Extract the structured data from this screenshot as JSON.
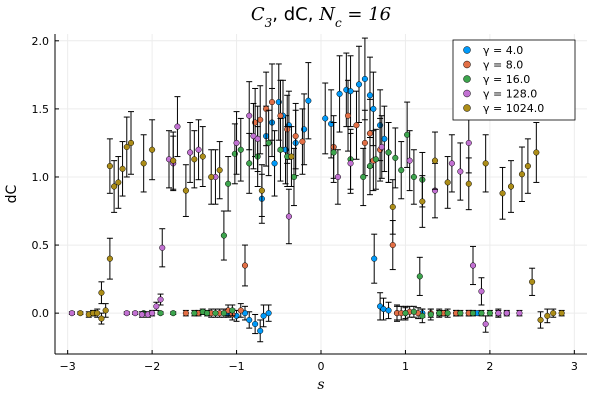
{
  "chart_data": {
    "type": "scatter",
    "title_parts": [
      {
        "text": "C",
        "italic": true
      },
      {
        "text": "3",
        "sub": true,
        "italic": true
      },
      {
        "text": ", dC, ",
        "italic": false
      },
      {
        "text": "N",
        "italic": true
      },
      {
        "text": "c",
        "sub": true,
        "italic": true
      },
      {
        "text": " = 16",
        "italic": true
      }
    ],
    "xlabel": "s",
    "ylabel": "dC",
    "xlim": [
      -3.15,
      3.15
    ],
    "ylim": [
      -0.3,
      2.05
    ],
    "xticks": [
      -3,
      -2,
      -1,
      0,
      1,
      2,
      3
    ],
    "xtick_labels": [
      "−3",
      "−2",
      "−1",
      "0",
      "1",
      "2",
      "3"
    ],
    "yticks": [
      0.0,
      0.5,
      1.0,
      1.5,
      2.0
    ],
    "ytick_labels": [
      "0.0",
      "0.5",
      "1.0",
      "1.5",
      "2.0"
    ],
    "grid": true,
    "legend_position": "top-right",
    "error_bars": true,
    "series": [
      {
        "name": "γ = 4.0",
        "color": "#009AFA",
        "points": [
          [
            -1.1,
            0.0,
            0.03
          ],
          [
            -1.0,
            -0.02,
            0.04
          ],
          [
            -0.9,
            0.0,
            0.05
          ],
          [
            -0.85,
            -0.05,
            0.06
          ],
          [
            -0.78,
            -0.08,
            0.07
          ],
          [
            -0.72,
            -0.13,
            0.08
          ],
          [
            -0.68,
            -0.02,
            0.08
          ],
          [
            -0.62,
            0.0,
            0.06
          ],
          [
            -0.7,
            0.84,
            0.18
          ],
          [
            -0.65,
            1.3,
            0.22
          ],
          [
            -0.58,
            1.4,
            0.25
          ],
          [
            -0.55,
            1.1,
            0.24
          ],
          [
            -0.5,
            1.55,
            0.28
          ],
          [
            -0.45,
            1.45,
            0.26
          ],
          [
            -0.42,
            1.2,
            0.25
          ],
          [
            -0.38,
            1.38,
            0.25
          ],
          [
            -0.3,
            1.25,
            0.24
          ],
          [
            -0.2,
            1.35,
            0.26
          ],
          [
            -0.15,
            1.56,
            0.28
          ],
          [
            0.05,
            1.43,
            0.26
          ],
          [
            0.12,
            1.39,
            0.25
          ],
          [
            0.22,
            1.61,
            0.28
          ],
          [
            0.3,
            1.64,
            0.27
          ],
          [
            0.35,
            1.63,
            0.26
          ],
          [
            0.45,
            1.68,
            0.28
          ],
          [
            0.52,
            1.72,
            0.3
          ],
          [
            0.58,
            1.6,
            0.28
          ],
          [
            0.62,
            1.5,
            0.27
          ],
          [
            0.7,
            1.38,
            0.26
          ],
          [
            0.75,
            1.28,
            0.24
          ],
          [
            0.8,
            1.18,
            0.22
          ],
          [
            0.63,
            0.4,
            0.18
          ],
          [
            0.7,
            0.05,
            0.1
          ],
          [
            0.74,
            0.03,
            0.08
          ],
          [
            0.8,
            0.02,
            0.06
          ],
          [
            0.9,
            0.0,
            0.05
          ],
          [
            1.0,
            0.0,
            0.04
          ],
          [
            1.2,
            0.0,
            0.03
          ],
          [
            1.4,
            0.0,
            0.02
          ],
          [
            1.6,
            0.0,
            0.02
          ],
          [
            1.75,
            0.0,
            0.02
          ],
          [
            1.85,
            0.0,
            0.01
          ]
        ]
      },
      {
        "name": "γ = 8.0",
        "color": "#E26F46",
        "points": [
          [
            -1.6,
            0.0,
            0.02
          ],
          [
            -1.45,
            0.0,
            0.02
          ],
          [
            -1.3,
            0.0,
            0.03
          ],
          [
            -1.2,
            0.0,
            0.03
          ],
          [
            -1.1,
            0.02,
            0.04
          ],
          [
            -1.05,
            -0.01,
            0.04
          ],
          [
            -0.95,
            0.02,
            0.05
          ],
          [
            -0.9,
            0.35,
            0.15
          ],
          [
            -0.78,
            1.4,
            0.25
          ],
          [
            -0.72,
            1.42,
            0.25
          ],
          [
            -0.65,
            1.5,
            0.27
          ],
          [
            -0.58,
            1.55,
            0.28
          ],
          [
            -0.48,
            1.45,
            0.26
          ],
          [
            -0.4,
            1.35,
            0.25
          ],
          [
            -0.3,
            1.3,
            0.24
          ],
          [
            -0.22,
            1.26,
            0.24
          ],
          [
            0.15,
            1.22,
            0.23
          ],
          [
            0.32,
            1.45,
            0.26
          ],
          [
            0.42,
            1.38,
            0.25
          ],
          [
            0.52,
            1.25,
            0.24
          ],
          [
            0.58,
            1.32,
            0.25
          ],
          [
            0.62,
            1.12,
            0.22
          ],
          [
            0.7,
            1.2,
            0.23
          ],
          [
            0.85,
            0.5,
            0.18
          ],
          [
            0.9,
            0.0,
            0.06
          ],
          [
            0.95,
            0.0,
            0.05
          ],
          [
            1.05,
            0.01,
            0.04
          ],
          [
            1.15,
            0.0,
            0.04
          ],
          [
            1.3,
            0.0,
            0.03
          ],
          [
            1.45,
            0.0,
            0.02
          ],
          [
            1.6,
            0.0,
            0.02
          ],
          [
            1.75,
            0.0,
            0.02
          ]
        ]
      },
      {
        "name": "γ = 16.0",
        "color": "#3DA44D",
        "points": [
          [
            -2.1,
            0.0,
            0.01
          ],
          [
            -1.9,
            0.0,
            0.01
          ],
          [
            -1.75,
            0.0,
            0.01
          ],
          [
            -1.5,
            0.0,
            0.02
          ],
          [
            -1.4,
            0.01,
            0.02
          ],
          [
            -1.35,
            0.0,
            0.02
          ],
          [
            -1.25,
            0.0,
            0.03
          ],
          [
            -1.15,
            0.0,
            0.03
          ],
          [
            -1.05,
            0.02,
            0.04
          ],
          [
            -1.15,
            0.57,
            0.18
          ],
          [
            -1.1,
            0.95,
            0.2
          ],
          [
            -1.02,
            1.17,
            0.22
          ],
          [
            -0.95,
            1.2,
            0.23
          ],
          [
            -0.85,
            1.1,
            0.22
          ],
          [
            -0.75,
            1.15,
            0.22
          ],
          [
            -0.62,
            1.25,
            0.24
          ],
          [
            -0.48,
            1.2,
            0.23
          ],
          [
            -0.4,
            1.15,
            0.22
          ],
          [
            -0.32,
            1.0,
            0.21
          ],
          [
            0.15,
            1.18,
            0.22
          ],
          [
            0.35,
            1.13,
            0.22
          ],
          [
            0.5,
            1.0,
            0.21
          ],
          [
            0.58,
            1.08,
            0.21
          ],
          [
            0.65,
            1.13,
            0.22
          ],
          [
            0.8,
            1.18,
            0.22
          ],
          [
            0.88,
            1.14,
            0.22
          ],
          [
            0.95,
            1.05,
            0.21
          ],
          [
            1.02,
            1.31,
            0.24
          ],
          [
            1.1,
            1.0,
            0.2
          ],
          [
            1.2,
            0.98,
            0.2
          ],
          [
            1.17,
            0.27,
            0.14
          ],
          [
            1.0,
            0.0,
            0.05
          ],
          [
            1.1,
            0.01,
            0.04
          ],
          [
            1.2,
            -0.02,
            0.05
          ],
          [
            1.3,
            -0.01,
            0.04
          ],
          [
            1.4,
            0.0,
            0.03
          ],
          [
            1.5,
            0.0,
            0.03
          ],
          [
            1.65,
            0.0,
            0.02
          ],
          [
            1.8,
            0.0,
            0.02
          ],
          [
            1.9,
            0.0,
            0.02
          ],
          [
            2.0,
            0.0,
            0.02
          ],
          [
            2.1,
            0.0,
            0.02
          ],
          [
            2.2,
            0.0,
            0.01
          ]
        ]
      },
      {
        "name": "γ = 128.0",
        "color": "#C271D2",
        "points": [
          [
            -2.95,
            0.0,
            0.01
          ],
          [
            -2.3,
            0.0,
            0.01
          ],
          [
            -2.2,
            0.0,
            0.01
          ],
          [
            -2.12,
            -0.01,
            0.02
          ],
          [
            -2.05,
            -0.01,
            0.02
          ],
          [
            -2.0,
            0.0,
            0.02
          ],
          [
            -1.95,
            0.05,
            0.03
          ],
          [
            -1.9,
            0.1,
            0.04
          ],
          [
            -1.88,
            0.48,
            0.14
          ],
          [
            -1.75,
            1.1,
            0.2
          ],
          [
            -1.8,
            1.13,
            0.21
          ],
          [
            -1.7,
            1.37,
            0.22
          ],
          [
            -1.55,
            1.18,
            0.22
          ],
          [
            -1.45,
            1.2,
            0.22
          ],
          [
            -1.25,
            1.0,
            0.2
          ],
          [
            -1.0,
            1.25,
            0.23
          ],
          [
            -0.85,
            1.45,
            0.25
          ],
          [
            -0.8,
            1.3,
            0.24
          ],
          [
            -0.75,
            1.28,
            0.24
          ],
          [
            -0.38,
            0.71,
            0.2
          ],
          [
            0.2,
            1.0,
            0.2
          ],
          [
            0.35,
            1.1,
            0.22
          ],
          [
            0.72,
            1.22,
            0.23
          ],
          [
            1.05,
            1.12,
            0.22
          ],
          [
            1.35,
            0.9,
            0.2
          ],
          [
            1.55,
            1.1,
            0.21
          ],
          [
            1.65,
            1.04,
            0.21
          ],
          [
            1.75,
            1.25,
            0.22
          ],
          [
            1.8,
            0.35,
            0.14
          ],
          [
            1.9,
            0.16,
            0.1
          ],
          [
            1.95,
            -0.08,
            0.06
          ],
          [
            2.1,
            0.0,
            0.03
          ],
          [
            2.2,
            0.0,
            0.02
          ],
          [
            2.35,
            0.0,
            0.02
          ]
        ]
      },
      {
        "name": "γ = 1024.0",
        "color": "#AC8D18",
        "points": [
          [
            -2.85,
            0.0,
            0.01
          ],
          [
            -2.75,
            -0.01,
            0.02
          ],
          [
            -2.7,
            0.0,
            0.02
          ],
          [
            -2.65,
            0.0,
            0.03
          ],
          [
            -2.6,
            -0.04,
            0.04
          ],
          [
            -2.55,
            0.02,
            0.05
          ],
          [
            -2.6,
            0.15,
            0.08
          ],
          [
            -2.5,
            0.4,
            0.15
          ],
          [
            -2.5,
            1.08,
            0.2
          ],
          [
            -2.45,
            0.93,
            0.19
          ],
          [
            -2.4,
            0.96,
            0.19
          ],
          [
            -2.35,
            1.06,
            0.2
          ],
          [
            -2.3,
            1.22,
            0.22
          ],
          [
            -2.25,
            1.25,
            0.23
          ],
          [
            -2.1,
            1.1,
            0.21
          ],
          [
            -2.0,
            1.2,
            0.22
          ],
          [
            -1.75,
            1.12,
            0.21
          ],
          [
            -1.6,
            0.9,
            0.19
          ],
          [
            -1.5,
            1.13,
            0.21
          ],
          [
            -1.4,
            1.15,
            0.22
          ],
          [
            -1.3,
            1.0,
            0.2
          ],
          [
            -1.2,
            1.05,
            0.21
          ],
          [
            -0.7,
            0.9,
            0.19
          ],
          [
            -0.35,
            1.15,
            0.22
          ],
          [
            0.85,
            0.78,
            0.2
          ],
          [
            1.2,
            0.82,
            0.19
          ],
          [
            1.35,
            1.12,
            0.21
          ],
          [
            1.5,
            0.96,
            0.19
          ],
          [
            1.75,
            0.95,
            0.19
          ],
          [
            1.95,
            1.1,
            0.21
          ],
          [
            2.15,
            0.88,
            0.19
          ],
          [
            2.25,
            0.93,
            0.19
          ],
          [
            2.38,
            1.02,
            0.2
          ],
          [
            2.45,
            1.08,
            0.2
          ],
          [
            2.55,
            1.18,
            0.22
          ],
          [
            2.5,
            0.23,
            0.1
          ],
          [
            2.6,
            -0.05,
            0.06
          ],
          [
            2.68,
            -0.02,
            0.05
          ],
          [
            2.75,
            0.0,
            0.03
          ],
          [
            2.85,
            0.0,
            0.02
          ]
        ]
      }
    ]
  }
}
